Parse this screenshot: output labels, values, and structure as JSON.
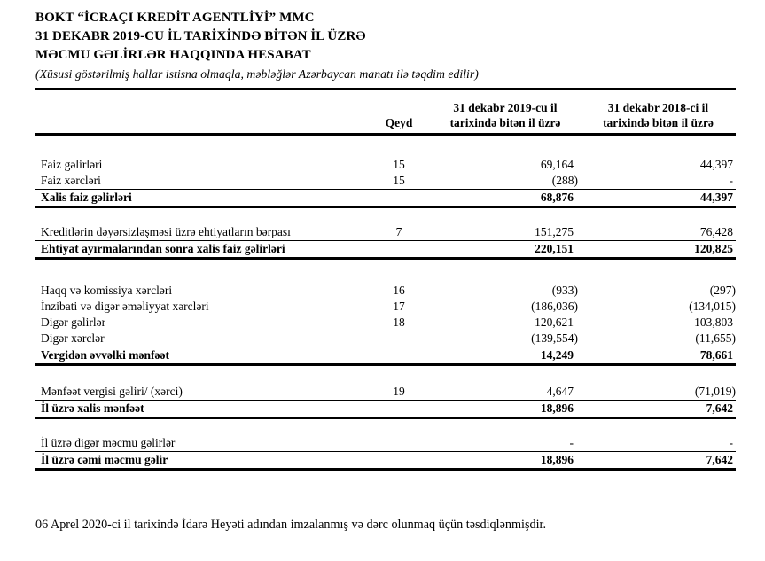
{
  "header": {
    "title_line_1": "BOKT “İCRAÇI KREDİT AGENTLİYİ” MMC",
    "title_line_2": "31 DEKABR 2019-CU İL TARİXİNDƏ BİTƏN İL ÜZRƏ",
    "title_line_3": "MƏCMU GƏLİRLƏR HAQQINDA HESABAT",
    "subtitle": "(Xüsusi göstərilmiş hallar istisna olmaqla, məbləğlər Azərbaycan manatı ilə təqdim edilir)"
  },
  "table": {
    "columns": {
      "note": "Qeyd",
      "y2019": {
        "line1": "31 dekabr 2019-cu il",
        "line2": "tarixində bitən il üzrə"
      },
      "y2018": {
        "line1": "31 dekabr 2018-ci il",
        "line2": "tarixində bitən il üzrə"
      }
    },
    "rows": [
      {
        "label": "Faiz gəlirləri",
        "note": "15",
        "y2019": "69,164",
        "y2018": "44,397"
      },
      {
        "label": "Faiz xərcləri",
        "note": "15",
        "y2019": "(288)",
        "y2018": "-"
      },
      {
        "label": "Xalis faiz gəlirləri",
        "note": "",
        "y2019": "68,876",
        "y2018": "44,397"
      },
      {
        "label": "Kreditlərin dəyərsizləşməsi üzrə ehtiyatların bərpası",
        "note": "7",
        "y2019": "151,275",
        "y2018": "76,428"
      },
      {
        "label": "Ehtiyat ayırmalarından sonra xalis faiz gəlirləri",
        "note": "",
        "y2019": "220,151",
        "y2018": "120,825"
      },
      {
        "label": "Haqq və komissiya xərcləri",
        "note": "16",
        "y2019": "(933)",
        "y2018": "(297)"
      },
      {
        "label": "İnzibati və digər əməliyyat xərcləri",
        "note": "17",
        "y2019": "(186,036)",
        "y2018": "(134,015)"
      },
      {
        "label": "Digər gəlirlər",
        "note": "18",
        "y2019": "120,621",
        "y2018": "103,803"
      },
      {
        "label": "Digər xərclər",
        "note": "",
        "y2019": "(139,554)",
        "y2018": "(11,655)"
      },
      {
        "label": "Vergidən əvvəlki mənfəət",
        "note": "",
        "y2019": "14,249",
        "y2018": "78,661"
      },
      {
        "label": "Mənfəət vergisi gəliri/ (xərci)",
        "note": "19",
        "y2019": "4,647",
        "y2018": "(71,019)"
      },
      {
        "label": "İl üzrə xalis mənfəət",
        "note": "",
        "y2019": "18,896",
        "y2018": "7,642"
      },
      {
        "label": "İl üzrə digər məcmu gəlirlər",
        "note": "",
        "y2019": "-",
        "y2018": "-"
      },
      {
        "label": "İl üzrə cəmi məcmu gəlir",
        "note": "",
        "y2019": "18,896",
        "y2018": "7,642"
      }
    ]
  },
  "footer": {
    "approval_note": "06 Aprel 2020-ci il tarixində İdarə Heyəti adından imzalanmış və dərc olunmaq üçün təsdiqlənmişdir."
  }
}
